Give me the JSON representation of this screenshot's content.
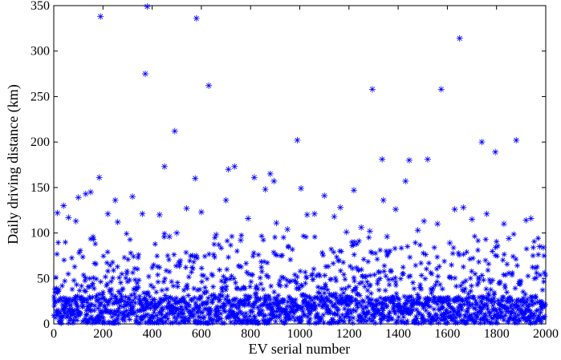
{
  "chart_data": {
    "type": "scatter",
    "title": "",
    "xlabel": "EV serial number",
    "ylabel": "Daily driving distance (km)",
    "xlim": [
      0,
      2000
    ],
    "ylim": [
      0,
      350
    ],
    "xticks": [
      0,
      200,
      400,
      600,
      800,
      1000,
      1200,
      1400,
      1600,
      1800,
      2000
    ],
    "yticks": [
      0,
      50,
      100,
      150,
      200,
      250,
      300,
      350
    ],
    "grid": false,
    "legend": "none",
    "marker": "asterisk",
    "color": "#0000ff",
    "series": [
      {
        "x": [
          190,
          380,
          372,
          580,
          630,
          492,
          1650,
          1575,
          1295,
          990,
          1740,
          1880,
          1795,
          1520,
          1445,
          1335,
          450,
          185,
          575,
          710,
          735,
          815,
          880,
          895,
          860,
          1005,
          1220,
          1100,
          1060,
          1165,
          1340,
          1630,
          1665,
          1760,
          1920,
          1940,
          600,
          700,
          360,
          250,
          130,
          40,
          15,
          60,
          90,
          430,
          540,
          905,
          1430,
          1505,
          1285,
          1390,
          1830,
          1975,
          320,
          150,
          260,
          500,
          660,
          760,
          950,
          1140,
          1250,
          1355,
          1480,
          1560,
          1700,
          1850,
          100,
          220,
          470,
          790,
          1030,
          1190,
          1610,
          1990
        ],
        "y": [
          338,
          349,
          275,
          336,
          262,
          212,
          314,
          258,
          258,
          202,
          200,
          202,
          189,
          181,
          180,
          181,
          173,
          161,
          160,
          170,
          173,
          161,
          165,
          157,
          148,
          149,
          147,
          141,
          121,
          128,
          136,
          126,
          128,
          121,
          114,
          116,
          123,
          136,
          121,
          136,
          143,
          130,
          122,
          117,
          113,
          120,
          127,
          111,
          157,
          113,
          102,
          126,
          110,
          85,
          140,
          145,
          112,
          100,
          98,
          92,
          104,
          118,
          106,
          96,
          103,
          110,
          115,
          94,
          139,
          121,
          96,
          116,
          120,
          101,
          89,
          84
        ]
      }
    ]
  }
}
